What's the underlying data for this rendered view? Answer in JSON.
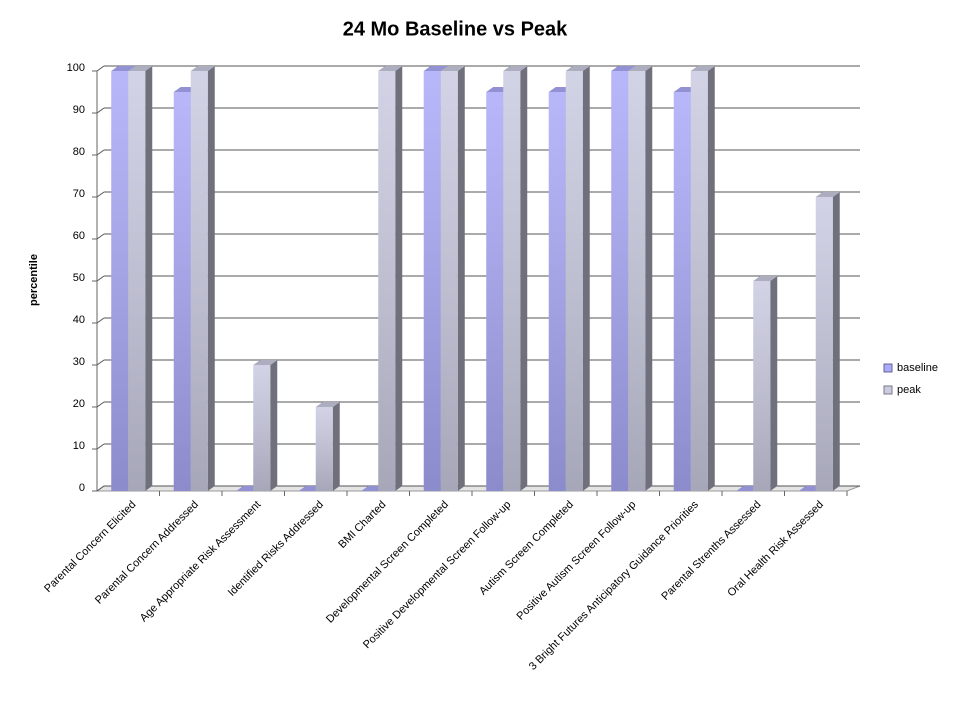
{
  "chart_data": {
    "type": "bar3d",
    "title": "24 Mo Baseline vs Peak",
    "y_label": "percentile",
    "categories": [
      "Parental Concern Elicited",
      "Parental Concern Addressed",
      "Age Appropriate Risk Assessment",
      "Identified Risks Addressed",
      "BMI Charted",
      "Developmental Screen Completed",
      "Positive Developmental Screen Follow-up",
      "Autism Screen Completed",
      "Positive Autism Screen Follow-up",
      "3 Bright Futures Anticipatory Guidance Priorities",
      "Parental Strenths Assessed",
      "Oral Health Risk Assessed"
    ],
    "series": [
      {
        "name": "baseline",
        "color": "#aaaaf8",
        "values": [
          100,
          95,
          0,
          0,
          0,
          100,
          95,
          95,
          100,
          95,
          0,
          0
        ]
      },
      {
        "name": "peak",
        "color": "#cbcbe2",
        "values": [
          100,
          100,
          30,
          20,
          100,
          100,
          100,
          100,
          100,
          100,
          50,
          70
        ]
      }
    ],
    "ylim": [
      0,
      100
    ],
    "yticks": [
      0,
      10,
      20,
      30,
      40,
      50,
      60,
      70,
      80,
      90,
      100
    ],
    "grid": true,
    "legend": "right"
  }
}
